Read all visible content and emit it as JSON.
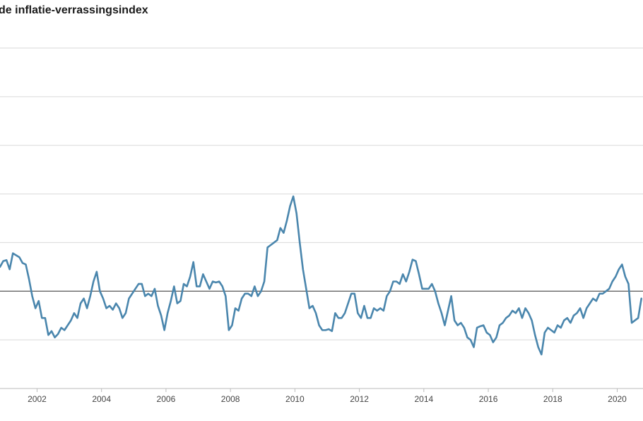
{
  "chart_data": {
    "type": "line",
    "title": "de inflatie-verrassingsindex",
    "xlabel": "",
    "ylabel": "",
    "x_ticks": [
      "2002",
      "2004",
      "2006",
      "2008",
      "2010",
      "2012",
      "2014",
      "2016",
      "2018",
      "2020"
    ],
    "xlim": [
      2000.85,
      2020.8
    ],
    "ylim": [
      -2,
      5
    ],
    "y_gridlines": [
      -2,
      -1,
      0,
      1,
      2,
      3,
      4,
      5
    ],
    "zero_line": 0,
    "grid": "horizontal",
    "legend": "none",
    "colors": {
      "line": "#4a86ad",
      "grid": "#d9d9d9",
      "zero_line": "#555555",
      "axis": "#bbbbbb"
    },
    "series": [
      {
        "name": "",
        "points": [
          [
            2000.85,
            0.5
          ],
          [
            2000.95,
            0.62
          ],
          [
            2001.05,
            0.64
          ],
          [
            2001.15,
            0.45
          ],
          [
            2001.25,
            0.78
          ],
          [
            2001.35,
            0.74
          ],
          [
            2001.45,
            0.7
          ],
          [
            2001.55,
            0.58
          ],
          [
            2001.65,
            0.55
          ],
          [
            2001.75,
            0.25
          ],
          [
            2001.85,
            -0.1
          ],
          [
            2001.95,
            -0.35
          ],
          [
            2002.05,
            -0.2
          ],
          [
            2002.15,
            -0.55
          ],
          [
            2002.25,
            -0.55
          ],
          [
            2002.35,
            -0.9
          ],
          [
            2002.45,
            -0.82
          ],
          [
            2002.55,
            -0.95
          ],
          [
            2002.65,
            -0.88
          ],
          [
            2002.75,
            -0.75
          ],
          [
            2002.85,
            -0.8
          ],
          [
            2002.95,
            -0.7
          ],
          [
            2003.05,
            -0.6
          ],
          [
            2003.15,
            -0.45
          ],
          [
            2003.25,
            -0.55
          ],
          [
            2003.35,
            -0.25
          ],
          [
            2003.45,
            -0.15
          ],
          [
            2003.55,
            -0.35
          ],
          [
            2003.65,
            -0.1
          ],
          [
            2003.75,
            0.2
          ],
          [
            2003.85,
            0.4
          ],
          [
            2003.95,
            0.0
          ],
          [
            2004.05,
            -0.15
          ],
          [
            2004.15,
            -0.35
          ],
          [
            2004.25,
            -0.3
          ],
          [
            2004.35,
            -0.38
          ],
          [
            2004.45,
            -0.25
          ],
          [
            2004.55,
            -0.35
          ],
          [
            2004.65,
            -0.55
          ],
          [
            2004.75,
            -0.45
          ],
          [
            2004.85,
            -0.15
          ],
          [
            2004.95,
            -0.05
          ],
          [
            2005.05,
            0.05
          ],
          [
            2005.15,
            0.15
          ],
          [
            2005.25,
            0.15
          ],
          [
            2005.35,
            -0.1
          ],
          [
            2005.45,
            -0.05
          ],
          [
            2005.55,
            -0.1
          ],
          [
            2005.65,
            0.05
          ],
          [
            2005.75,
            -0.3
          ],
          [
            2005.85,
            -0.5
          ],
          [
            2005.95,
            -0.8
          ],
          [
            2006.05,
            -0.45
          ],
          [
            2006.15,
            -0.2
          ],
          [
            2006.25,
            0.1
          ],
          [
            2006.35,
            -0.25
          ],
          [
            2006.45,
            -0.2
          ],
          [
            2006.55,
            0.15
          ],
          [
            2006.65,
            0.1
          ],
          [
            2006.75,
            0.3
          ],
          [
            2006.85,
            0.6
          ],
          [
            2006.95,
            0.1
          ],
          [
            2007.05,
            0.1
          ],
          [
            2007.15,
            0.35
          ],
          [
            2007.25,
            0.2
          ],
          [
            2007.35,
            0.05
          ],
          [
            2007.45,
            0.2
          ],
          [
            2007.55,
            0.18
          ],
          [
            2007.65,
            0.2
          ],
          [
            2007.75,
            0.1
          ],
          [
            2007.85,
            -0.1
          ],
          [
            2007.95,
            -0.8
          ],
          [
            2008.05,
            -0.7
          ],
          [
            2008.15,
            -0.35
          ],
          [
            2008.25,
            -0.4
          ],
          [
            2008.35,
            -0.15
          ],
          [
            2008.45,
            -0.05
          ],
          [
            2008.55,
            -0.05
          ],
          [
            2008.65,
            -0.1
          ],
          [
            2008.75,
            0.1
          ],
          [
            2008.85,
            -0.1
          ],
          [
            2008.95,
            0.0
          ],
          [
            2009.05,
            0.2
          ],
          [
            2009.15,
            0.9
          ],
          [
            2009.25,
            0.95
          ],
          [
            2009.35,
            1.0
          ],
          [
            2009.45,
            1.05
          ],
          [
            2009.55,
            1.3
          ],
          [
            2009.65,
            1.2
          ],
          [
            2009.75,
            1.45
          ],
          [
            2009.85,
            1.75
          ],
          [
            2009.95,
            1.95
          ],
          [
            2010.05,
            1.6
          ],
          [
            2010.15,
            1.0
          ],
          [
            2010.25,
            0.45
          ],
          [
            2010.35,
            0.05
          ],
          [
            2010.45,
            -0.35
          ],
          [
            2010.55,
            -0.3
          ],
          [
            2010.65,
            -0.45
          ],
          [
            2010.75,
            -0.7
          ],
          [
            2010.85,
            -0.8
          ],
          [
            2010.95,
            -0.8
          ],
          [
            2011.05,
            -0.78
          ],
          [
            2011.15,
            -0.82
          ],
          [
            2011.25,
            -0.45
          ],
          [
            2011.35,
            -0.55
          ],
          [
            2011.45,
            -0.55
          ],
          [
            2011.55,
            -0.45
          ],
          [
            2011.65,
            -0.25
          ],
          [
            2011.75,
            -0.05
          ],
          [
            2011.85,
            -0.05
          ],
          [
            2011.95,
            -0.45
          ],
          [
            2012.05,
            -0.55
          ],
          [
            2012.15,
            -0.3
          ],
          [
            2012.25,
            -0.55
          ],
          [
            2012.35,
            -0.55
          ],
          [
            2012.45,
            -0.35
          ],
          [
            2012.55,
            -0.4
          ],
          [
            2012.65,
            -0.35
          ],
          [
            2012.75,
            -0.4
          ],
          [
            2012.85,
            -0.1
          ],
          [
            2012.95,
            0.0
          ],
          [
            2013.05,
            0.2
          ],
          [
            2013.15,
            0.2
          ],
          [
            2013.25,
            0.15
          ],
          [
            2013.35,
            0.35
          ],
          [
            2013.45,
            0.2
          ],
          [
            2013.55,
            0.4
          ],
          [
            2013.65,
            0.65
          ],
          [
            2013.75,
            0.62
          ],
          [
            2013.85,
            0.35
          ],
          [
            2013.95,
            0.05
          ],
          [
            2014.05,
            0.05
          ],
          [
            2014.15,
            0.05
          ],
          [
            2014.25,
            0.15
          ],
          [
            2014.35,
            0.0
          ],
          [
            2014.45,
            -0.25
          ],
          [
            2014.55,
            -0.45
          ],
          [
            2014.65,
            -0.7
          ],
          [
            2014.75,
            -0.4
          ],
          [
            2014.85,
            -0.1
          ],
          [
            2014.95,
            -0.6
          ],
          [
            2015.05,
            -0.7
          ],
          [
            2015.15,
            -0.65
          ],
          [
            2015.25,
            -0.75
          ],
          [
            2015.35,
            -0.95
          ],
          [
            2015.45,
            -1.0
          ],
          [
            2015.55,
            -1.15
          ],
          [
            2015.65,
            -0.75
          ],
          [
            2015.75,
            -0.72
          ],
          [
            2015.85,
            -0.7
          ],
          [
            2015.95,
            -0.85
          ],
          [
            2016.05,
            -0.9
          ],
          [
            2016.15,
            -1.05
          ],
          [
            2016.25,
            -0.95
          ],
          [
            2016.35,
            -0.7
          ],
          [
            2016.45,
            -0.65
          ],
          [
            2016.55,
            -0.55
          ],
          [
            2016.65,
            -0.5
          ],
          [
            2016.75,
            -0.4
          ],
          [
            2016.85,
            -0.45
          ],
          [
            2016.95,
            -0.35
          ],
          [
            2017.05,
            -0.55
          ],
          [
            2017.15,
            -0.35
          ],
          [
            2017.25,
            -0.45
          ],
          [
            2017.35,
            -0.6
          ],
          [
            2017.45,
            -0.9
          ],
          [
            2017.55,
            -1.15
          ],
          [
            2017.65,
            -1.3
          ],
          [
            2017.75,
            -0.85
          ],
          [
            2017.85,
            -0.75
          ],
          [
            2017.95,
            -0.8
          ],
          [
            2018.05,
            -0.85
          ],
          [
            2018.15,
            -0.7
          ],
          [
            2018.25,
            -0.75
          ],
          [
            2018.35,
            -0.6
          ],
          [
            2018.45,
            -0.55
          ],
          [
            2018.55,
            -0.65
          ],
          [
            2018.65,
            -0.5
          ],
          [
            2018.75,
            -0.45
          ],
          [
            2018.85,
            -0.35
          ],
          [
            2018.95,
            -0.55
          ],
          [
            2019.05,
            -0.35
          ],
          [
            2019.15,
            -0.25
          ],
          [
            2019.25,
            -0.15
          ],
          [
            2019.35,
            -0.2
          ],
          [
            2019.45,
            -0.05
          ],
          [
            2019.55,
            -0.05
          ],
          [
            2019.65,
            0.0
          ],
          [
            2019.75,
            0.05
          ],
          [
            2019.85,
            0.2
          ],
          [
            2019.95,
            0.3
          ],
          [
            2020.05,
            0.45
          ],
          [
            2020.15,
            0.55
          ],
          [
            2020.25,
            0.3
          ],
          [
            2020.35,
            0.15
          ],
          [
            2020.45,
            -0.65
          ],
          [
            2020.55,
            -0.6
          ],
          [
            2020.65,
            -0.55
          ],
          [
            2020.75,
            -0.15
          ]
        ]
      }
    ]
  }
}
